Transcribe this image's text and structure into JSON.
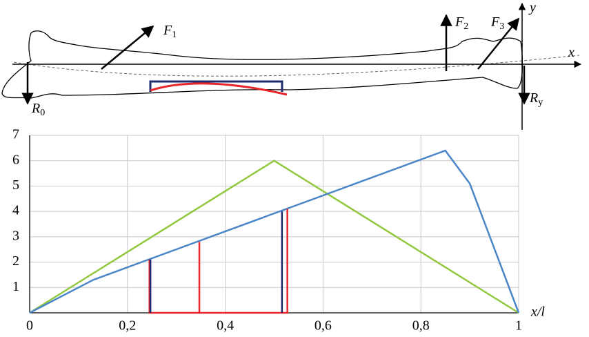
{
  "diagram": {
    "labels": [
      {
        "text": "F",
        "sub": "1"
      },
      {
        "text": "F",
        "sub": "2"
      },
      {
        "text": "F",
        "sub": "3"
      },
      {
        "text": "y"
      },
      {
        "text": "x"
      },
      {
        "text": "R",
        "sub": "0"
      },
      {
        "text": "R",
        "sub": "y"
      }
    ]
  },
  "chart_data": {
    "type": "line",
    "xlabel": "x/l",
    "xlim": [
      0,
      1
    ],
    "ylim": [
      0,
      7
    ],
    "xticks": [
      0,
      {
        "value": 0.2,
        "label": "0,2"
      },
      {
        "value": 0.4,
        "label": "0,4"
      },
      {
        "value": 0.6,
        "label": "0,6"
      },
      {
        "value": 0.8,
        "label": "0,8"
      },
      1
    ],
    "yticks": [
      1,
      2,
      3,
      4,
      5,
      6,
      7
    ],
    "grid": true,
    "series": [
      {
        "color": "#92c83e",
        "x": [
          0,
          0.5,
          1
        ],
        "values": [
          0,
          6,
          0
        ]
      },
      {
        "color": "#4a86c8",
        "x": [
          0,
          0.13,
          0.85,
          0.9,
          1
        ],
        "values": [
          0,
          1.3,
          6.4,
          5.1,
          0
        ]
      },
      {
        "color": "#e8262a",
        "x": [
          0.245,
          0.245,
          0.527,
          0.527,
          null,
          0.347,
          0.347
        ],
        "values": [
          2.1,
          0,
          0,
          4.1,
          null,
          0,
          2.8
        ]
      },
      {
        "color": "#1f2a6e",
        "x": [
          0.247,
          0.247,
          null,
          0.516,
          0.516
        ],
        "values": [
          0,
          2.1,
          null,
          0,
          4
        ]
      }
    ]
  }
}
